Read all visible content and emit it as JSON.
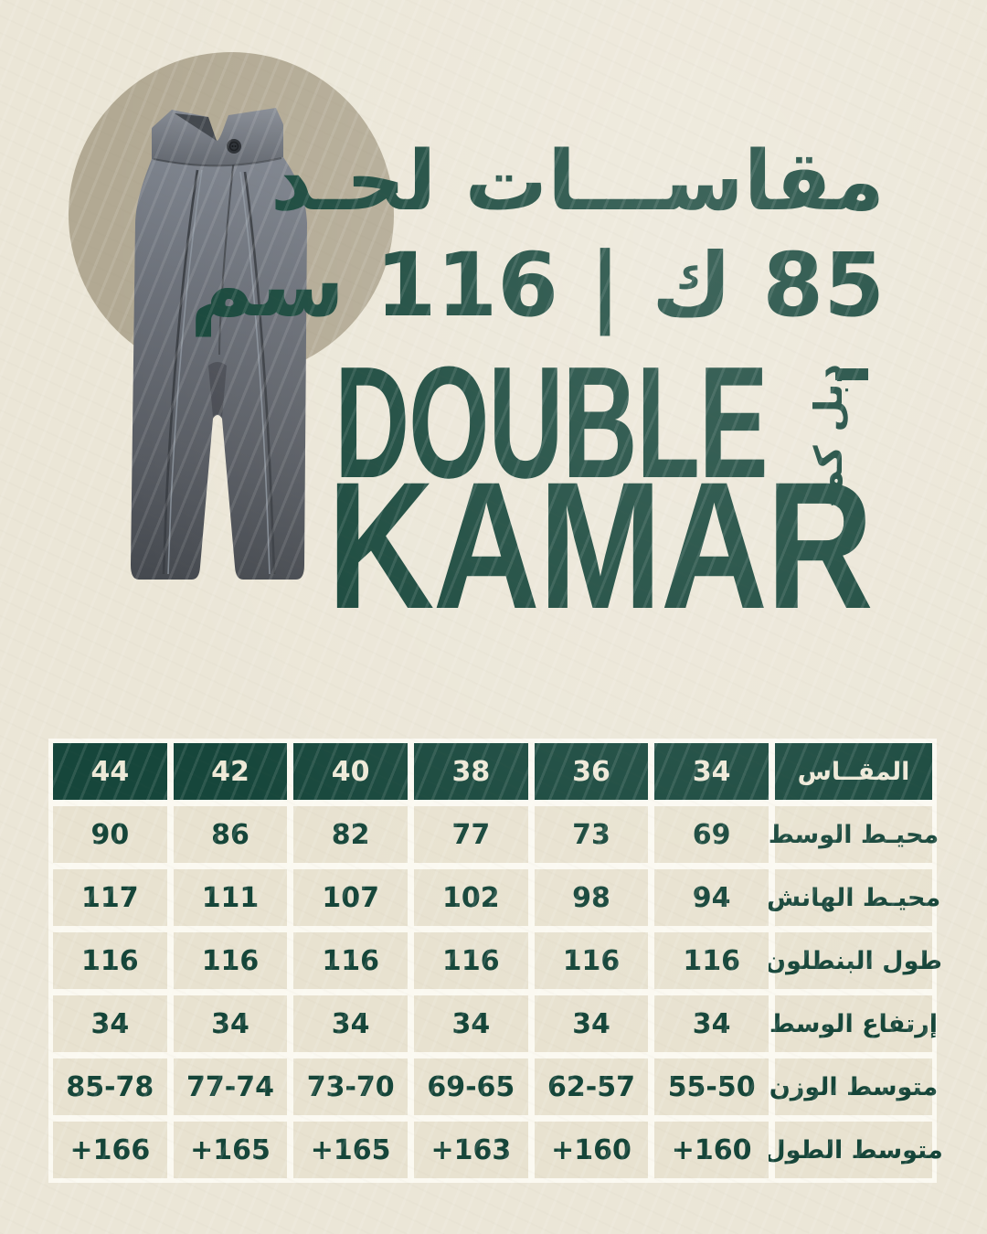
{
  "palette": {
    "bg": "#ebe6d7",
    "green": "#154539",
    "header_green": "#16463b",
    "cell_beige": "#e8e2d0",
    "gap_white": "#fbf9f1",
    "cream_text": "#eee9d7",
    "circle_taupe": "#b2a993"
  },
  "hero": {
    "headline_line1": "مقاســـات لحـد",
    "headline_line2": "85 ك | 116 سم",
    "brand_latin_line1": "DOUBLE",
    "brand_latin_line2": "KAMAR",
    "brand_arabic": "دبل كمر",
    "product_image": "gray-wide-leg-double-waistband-trousers"
  },
  "chart_data": {
    "type": "table",
    "title_latin": "DOUBLE KAMAR",
    "title_arabic": "مقاســـات لحـد 85 ك | 116 سم",
    "layout": "rtl, label column on right, size header row in dark green",
    "size_header_label": "المقــاس",
    "sizes": [
      "34",
      "36",
      "38",
      "40",
      "42",
      "44"
    ],
    "rows": [
      {
        "label": "محيـط الوسط",
        "values": [
          "69",
          "73",
          "77",
          "82",
          "86",
          "90"
        ]
      },
      {
        "label": "محيـط الهانش",
        "values": [
          "94",
          "98",
          "102",
          "107",
          "111",
          "117"
        ]
      },
      {
        "label": "طول البنطلون",
        "values": [
          "116",
          "116",
          "116",
          "116",
          "116",
          "116"
        ]
      },
      {
        "label": "إرتفاع الوسط",
        "values": [
          "34",
          "34",
          "34",
          "34",
          "34",
          "34"
        ]
      },
      {
        "label": "متوسط الوزن",
        "values": [
          "55-50",
          "62-57",
          "69-65",
          "73-70",
          "77-74",
          "85-78"
        ]
      },
      {
        "label": "متوسط الطول",
        "values": [
          "+160",
          "+160",
          "+163",
          "+165",
          "+165",
          "+166"
        ]
      }
    ]
  }
}
